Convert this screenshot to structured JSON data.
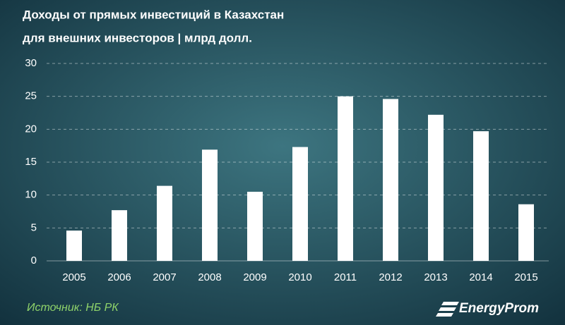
{
  "chart_data": {
    "type": "bar",
    "title_lines": [
      "Доходы от прямых  инвестиций  в Казахстан",
      "для внешних  инвесторов  | млрд долл."
    ],
    "categories": [
      "2005",
      "2006",
      "2007",
      "2008",
      "2009",
      "2010",
      "2011",
      "2012",
      "2013",
      "2014",
      "2015"
    ],
    "values": [
      4.6,
      7.7,
      11.4,
      16.9,
      10.5,
      17.3,
      25.0,
      24.6,
      22.2,
      19.7,
      8.6
    ],
    "color": "#ffffff",
    "ylim": [
      0,
      30
    ],
    "yticks": [
      0,
      5,
      10,
      15,
      20,
      25,
      30
    ],
    "grid": true,
    "source": "Источник: НБ РК",
    "logo": "EnergyProm"
  }
}
